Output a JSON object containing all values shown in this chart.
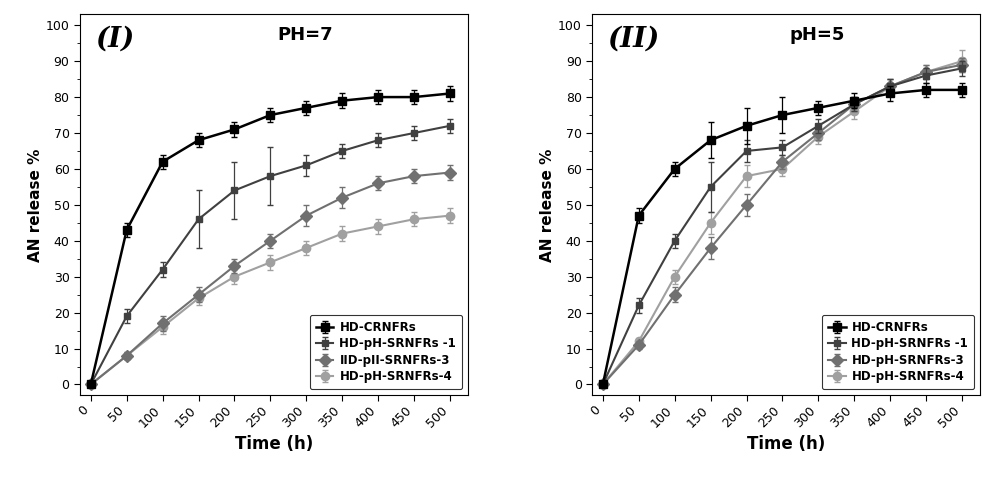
{
  "time": [
    0,
    50,
    100,
    150,
    200,
    250,
    300,
    350,
    400,
    450,
    500
  ],
  "ph7": {
    "HD_CRNFRs": [
      0,
      43,
      62,
      68,
      71,
      75,
      77,
      79,
      80,
      80,
      81
    ],
    "HD_pH_SRNFRs_1": [
      0,
      19,
      32,
      46,
      54,
      58,
      61,
      65,
      68,
      70,
      72
    ],
    "HD_pH_SRNFRs_3": [
      0,
      8,
      17,
      25,
      33,
      40,
      47,
      52,
      56,
      58,
      59
    ],
    "HD_pH_SRNFRs_4": [
      0,
      8,
      16,
      24,
      30,
      34,
      38,
      42,
      44,
      46,
      47
    ],
    "HD_CRNFRs_err": [
      0,
      2,
      2,
      2,
      2,
      2,
      2,
      2,
      2,
      2,
      2
    ],
    "HD_pH_SRNFRs_1_err": [
      0,
      2,
      2,
      8,
      8,
      8,
      3,
      2,
      2,
      2,
      2
    ],
    "HD_pH_SRNFRs_3_err": [
      0,
      1,
      2,
      2,
      2,
      2,
      3,
      3,
      2,
      2,
      2
    ],
    "HD_pH_SRNFRs_4_err": [
      0,
      1,
      2,
      2,
      2,
      2,
      2,
      2,
      2,
      2,
      2
    ]
  },
  "ph5": {
    "HD_CRNFRs": [
      0,
      47,
      60,
      68,
      72,
      75,
      77,
      79,
      81,
      82,
      82
    ],
    "HD_pH_SRNFRs_1": [
      0,
      22,
      40,
      55,
      65,
      66,
      72,
      78,
      83,
      86,
      88
    ],
    "HD_pH_SRNFRs_3": [
      0,
      11,
      25,
      38,
      50,
      62,
      70,
      78,
      83,
      87,
      89
    ],
    "HD_pH_SRNFRs_4": [
      0,
      12,
      30,
      45,
      58,
      60,
      69,
      76,
      83,
      87,
      90
    ],
    "HD_CRNFRs_err": [
      0,
      2,
      2,
      5,
      5,
      5,
      2,
      2,
      2,
      2,
      2
    ],
    "HD_pH_SRNFRs_1_err": [
      0,
      2,
      2,
      7,
      3,
      2,
      2,
      2,
      2,
      2,
      2
    ],
    "HD_pH_SRNFRs_3_err": [
      0,
      1,
      2,
      3,
      3,
      2,
      2,
      2,
      2,
      2,
      2
    ],
    "HD_pH_SRNFRs_4_err": [
      0,
      1,
      2,
      3,
      3,
      2,
      2,
      2,
      2,
      2,
      3
    ]
  },
  "legend_labels_ph7": [
    "HD-CRNFRs",
    "HD-pH-SRNFRs -1",
    "IID-pII-SRNFRs-3",
    "HD-pH-SRNFRs-4"
  ],
  "legend_labels_ph5": [
    "HD-CRNFRs",
    "HD-pH-SRNFRs -1",
    "HD-pH-SRNFRs-3",
    "HD-pH-SRNFRs-4"
  ],
  "colors": [
    "#000000",
    "#404040",
    "#707070",
    "#a0a0a0"
  ],
  "markers": [
    "s",
    "s",
    "D",
    "o"
  ],
  "markersizes": [
    6,
    5,
    6,
    6
  ],
  "linewidths": [
    1.8,
    1.5,
    1.5,
    1.5
  ],
  "panel1_label": "(I)",
  "panel2_label": "(II)",
  "panel1_title": "PH=7",
  "panel2_title": "pH=5",
  "xlabel": "Time (h)",
  "ylabel": "AN release %",
  "xticks": [
    0,
    50,
    100,
    150,
    200,
    250,
    300,
    350,
    400,
    450,
    500
  ],
  "yticks": [
    0,
    10,
    20,
    30,
    40,
    50,
    60,
    70,
    80,
    90,
    100
  ],
  "ylim": [
    -3,
    103
  ],
  "xlim": [
    -15,
    525
  ]
}
